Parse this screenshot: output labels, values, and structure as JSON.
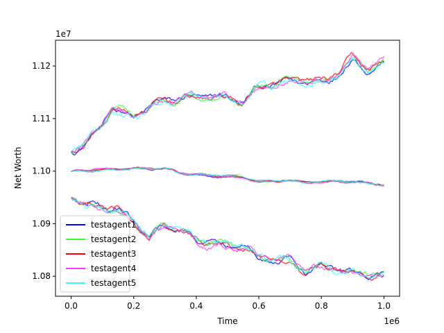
{
  "chart_data": {
    "type": "line",
    "xlabel": "Time",
    "ylabel": "Net Worth",
    "x_offset_label": "1e6",
    "y_offset_label": "1e7",
    "xlim": [
      -0.05,
      1.05
    ],
    "ylim": [
      1.0762,
      1.1249
    ],
    "xticks": [
      {
        "value": 0.0,
        "label": "0.0"
      },
      {
        "value": 0.2,
        "label": "0.2"
      },
      {
        "value": 0.4,
        "label": "0.4"
      },
      {
        "value": 0.6,
        "label": "0.6"
      },
      {
        "value": 0.8,
        "label": "0.8"
      },
      {
        "value": 1.0,
        "label": "1.0"
      }
    ],
    "yticks": [
      {
        "value": 1.08,
        "label": "1.08"
      },
      {
        "value": 1.09,
        "label": "1.09"
      },
      {
        "value": 1.1,
        "label": "1.10"
      },
      {
        "value": 1.11,
        "label": "1.11"
      },
      {
        "value": 1.12,
        "label": "1.12"
      }
    ],
    "legend_position": "lower-left",
    "grid": false,
    "legend": [
      {
        "name": "testagent1",
        "color": "#0000ff"
      },
      {
        "name": "testagent2",
        "color": "#33ff33"
      },
      {
        "name": "testagent3",
        "color": "#ff0000"
      },
      {
        "name": "testagent4",
        "color": "#ff33ff"
      },
      {
        "name": "testagent5",
        "color": "#33ffff"
      }
    ],
    "line_groups": [
      {
        "name": "upper",
        "start": 1.1037,
        "anchors": [
          [
            0.0,
            1.1037
          ],
          [
            0.05,
            1.1055
          ],
          [
            0.1,
            1.1085
          ],
          [
            0.13,
            1.112
          ],
          [
            0.2,
            1.1105
          ],
          [
            0.3,
            1.1135
          ],
          [
            0.4,
            1.114
          ],
          [
            0.5,
            1.114
          ],
          [
            0.55,
            1.113
          ],
          [
            0.6,
            1.116
          ],
          [
            0.7,
            1.117
          ],
          [
            0.8,
            1.117
          ],
          [
            0.85,
            1.1185
          ],
          [
            0.9,
            1.1215
          ],
          [
            0.95,
            1.1195
          ],
          [
            1.0,
            1.1205
          ]
        ],
        "noise": 0.0007
      },
      {
        "name": "middle",
        "start": 1.0999,
        "anchors": [
          [
            0.0,
            1.0999
          ],
          [
            0.1,
            1.1003
          ],
          [
            0.2,
            1.1005
          ],
          [
            0.3,
            1.1005
          ],
          [
            0.35,
            1.0996
          ],
          [
            0.45,
            1.0992
          ],
          [
            0.55,
            1.0988
          ],
          [
            0.6,
            1.098
          ],
          [
            0.7,
            1.0983
          ],
          [
            0.75,
            1.0978
          ],
          [
            0.8,
            1.0981
          ],
          [
            0.9,
            1.098
          ],
          [
            1.0,
            1.0974
          ]
        ],
        "noise": 0.0002
      },
      {
        "name": "lower",
        "start": 1.095,
        "anchors": [
          [
            0.0,
            1.095
          ],
          [
            0.05,
            1.0935
          ],
          [
            0.1,
            1.093
          ],
          [
            0.15,
            1.0925
          ],
          [
            0.2,
            1.0905
          ],
          [
            0.25,
            1.0875
          ],
          [
            0.3,
            1.0895
          ],
          [
            0.35,
            1.089
          ],
          [
            0.4,
            1.087
          ],
          [
            0.5,
            1.086
          ],
          [
            0.55,
            1.086
          ],
          [
            0.6,
            1.0838
          ],
          [
            0.7,
            1.083
          ],
          [
            0.75,
            1.081
          ],
          [
            0.8,
            1.082
          ],
          [
            0.9,
            1.0805
          ],
          [
            1.0,
            1.08
          ]
        ],
        "noise": 0.0007
      }
    ]
  }
}
